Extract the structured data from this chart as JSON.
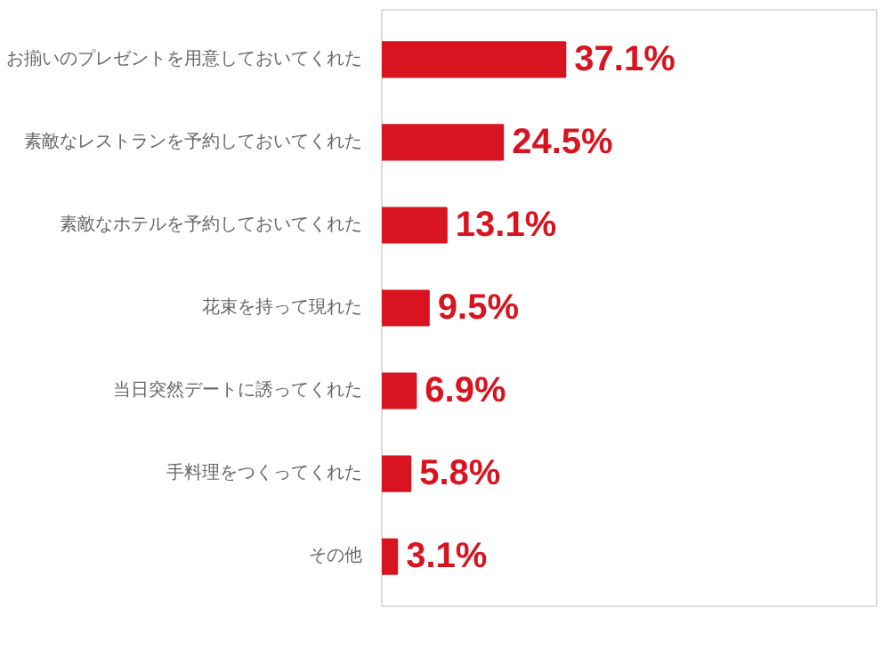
{
  "chart_data": {
    "type": "bar",
    "orientation": "horizontal",
    "categories": [
      "お揃いのプレゼントを用意しておいてくれた",
      "素敵なレストランを予約しておいてくれた",
      "素敵なホテルを予約しておいてくれた",
      "花束を持って現れた",
      "当日突然デートに誘ってくれた",
      "手料理をつくってくれた",
      "その他"
    ],
    "series": [
      {
        "color": "#d7141f",
        "values": [
          37.1,
          24.5,
          13.1,
          9.5,
          6.9,
          5.8,
          3.1
        ],
        "value_labels": [
          "37.1%",
          "24.5%",
          "13.1%",
          "9.5%",
          "6.9%",
          "5.8%",
          "3.1%"
        ]
      }
    ],
    "xlim": [
      0,
      100
    ],
    "grid": false,
    "tick_labels": "y"
  }
}
